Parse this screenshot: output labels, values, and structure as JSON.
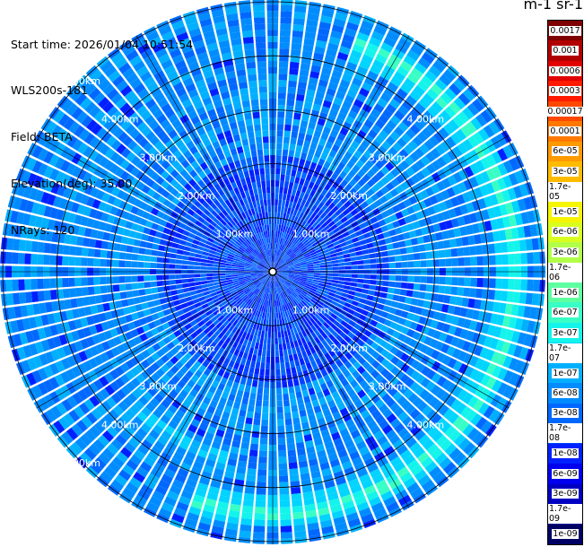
{
  "header": {
    "start_time": "Start time: 2026/01/04 10:51:54",
    "instrument": "WLS200s-181",
    "field": "Field: BETA",
    "elevation": "Elevation(deg): 35.00",
    "nrays": "NRays: 120"
  },
  "colorbar": {
    "unit_label": "m-1 sr-1",
    "levels": [
      {
        "label": "0.0017",
        "color": "#7f0000"
      },
      {
        "label": "0.001",
        "color": "#b00000"
      },
      {
        "label": "0.0006",
        "color": "#e00000"
      },
      {
        "label": "0.0003",
        "color": "#ff1a00"
      },
      {
        "label": "0.00017",
        "color": "#ff4800"
      },
      {
        "label": "0.0001",
        "color": "#ff7800"
      },
      {
        "label": "6e-05",
        "color": "#ff9a00"
      },
      {
        "label": "3e-05",
        "color": "#ffbb00"
      },
      {
        "label": "1.7e-05",
        "color": "#ffdd00"
      },
      {
        "label": "1e-05",
        "color": "#f5f500"
      },
      {
        "label": "6e-06",
        "color": "#d8ff1f"
      },
      {
        "label": "3e-06",
        "color": "#b2ff4a"
      },
      {
        "label": "1.7e-06",
        "color": "#86ff78"
      },
      {
        "label": "1e-06",
        "color": "#5effa0"
      },
      {
        "label": "6e-07",
        "color": "#38ffc6"
      },
      {
        "label": "3e-07",
        "color": "#14f4eb"
      },
      {
        "label": "1.7e-07",
        "color": "#00d4ff"
      },
      {
        "label": "1e-07",
        "color": "#00b0ff"
      },
      {
        "label": "6e-08",
        "color": "#008cff"
      },
      {
        "label": "3e-08",
        "color": "#0068ff"
      },
      {
        "label": "1.7e-08",
        "color": "#0044ff"
      },
      {
        "label": "1e-08",
        "color": "#0020ff"
      },
      {
        "label": "6e-09",
        "color": "#0000ee"
      },
      {
        "label": "3e-09",
        "color": "#0000c0"
      },
      {
        "label": "1.7e-09",
        "color": "#000092"
      },
      {
        "label": "1e-09",
        "color": "#000064"
      }
    ]
  },
  "chart_data": {
    "type": "heatmap",
    "projection": "polar-ppi",
    "field": "BETA",
    "elevation_deg": 35.0,
    "n_rays": 120,
    "range_rings_km": [
      1,
      2,
      3,
      4,
      5
    ],
    "range_ring_labels": [
      "1.00km",
      "2.00km",
      "3.00km",
      "4.00km",
      "5.00km"
    ],
    "max_range_km": 5.9,
    "grid": true,
    "background_beta": "6e-08",
    "features": [
      {
        "name": "elevated aerosol layer arc",
        "range_km": 4.45,
        "azimuth_from_deg": 20,
        "azimuth_to_deg": 200,
        "peak_beta": "6e-07"
      },
      {
        "name": "secondary arc",
        "range_km": 3.6,
        "azimuth_from_deg": 195,
        "azimuth_to_deg": 225,
        "peak_beta": "1.7e-07"
      }
    ]
  }
}
